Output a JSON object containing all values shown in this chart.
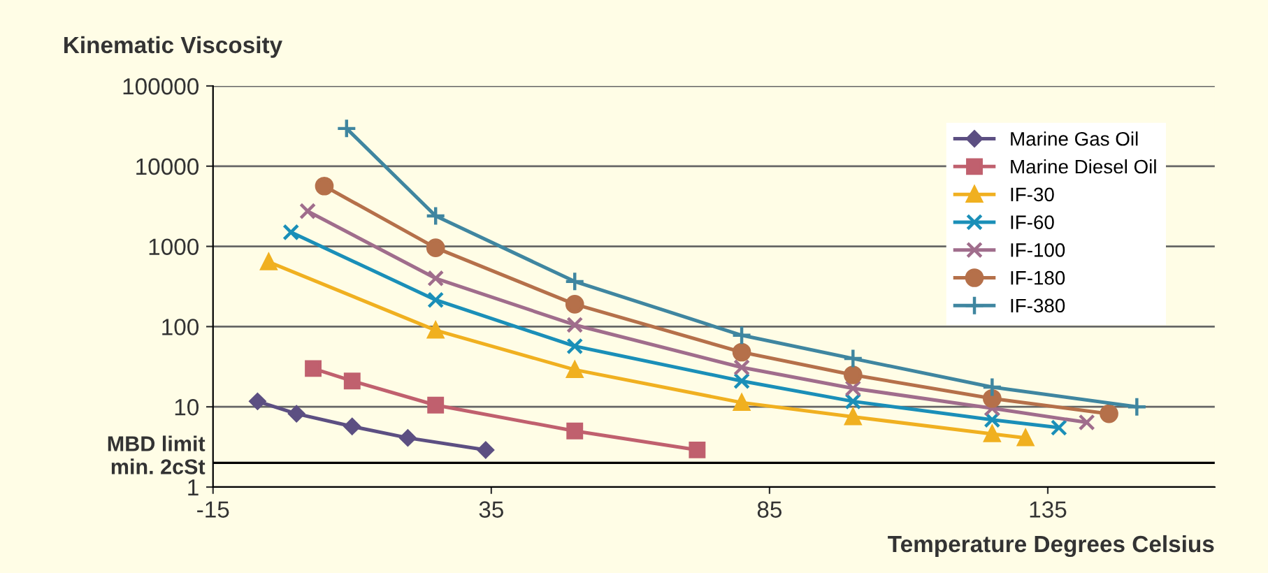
{
  "chart_data": {
    "type": "line",
    "ylabel": "Kinematic Viscosity",
    "xlabel": "Temperature Degrees Celsius",
    "log": "y",
    "xlim": [
      -15,
      165
    ],
    "xticks": [
      -15,
      35,
      85,
      135
    ],
    "ylim": [
      1,
      100000
    ],
    "yticks": [
      1,
      10,
      100,
      1000,
      10000,
      100000
    ],
    "grid": "y",
    "legend": "top right",
    "line_style": "solid",
    "ref_lines": [
      {
        "axis": "y",
        "value": 2,
        "label": "MBD limit\nmin. 2cSt",
        "color": "#000000"
      }
    ],
    "series": [
      {
        "name": "Marine Gas Oil",
        "color": "#5c4f82",
        "marker": "diamond",
        "x": [
          -7,
          0,
          10,
          20,
          34
        ],
        "values": [
          11.7,
          8.2,
          5.7,
          4.1,
          2.9
        ]
      },
      {
        "name": "Marine Diesel Oil",
        "color": "#c0606e",
        "marker": "square",
        "x": [
          3,
          10,
          25,
          50,
          72
        ],
        "values": [
          30,
          21,
          10.5,
          5,
          2.9
        ]
      },
      {
        "name": "IF-30",
        "color": "#f0b020",
        "marker": "triangle",
        "x": [
          -5,
          25,
          50,
          80,
          100,
          125,
          131
        ],
        "values": [
          640,
          90,
          29,
          11.3,
          7.5,
          4.6,
          4.1
        ]
      },
      {
        "name": "IF-60",
        "color": "#1a8fb8",
        "marker": "cross",
        "x": [
          -1,
          25,
          50,
          80,
          100,
          125,
          137
        ],
        "values": [
          1500,
          215,
          57,
          21,
          11.7,
          6.9,
          5.5
        ]
      },
      {
        "name": "IF-100",
        "color": "#a06d8c",
        "marker": "cross",
        "x": [
          2,
          25,
          50,
          80,
          100,
          125,
          142
        ],
        "values": [
          2750,
          400,
          105,
          31,
          17,
          9.6,
          6.4
        ]
      },
      {
        "name": "IF-180",
        "color": "#b5704a",
        "marker": "circle",
        "x": [
          5,
          25,
          50,
          80,
          100,
          125,
          146
        ],
        "values": [
          5650,
          960,
          190,
          48,
          25,
          12.7,
          8.2
        ]
      },
      {
        "name": "IF-380",
        "color": "#3f86a0",
        "marker": "plus",
        "x": [
          9,
          25,
          50,
          80,
          100,
          125,
          151
        ],
        "values": [
          29500,
          2400,
          365,
          78,
          40,
          17.6,
          10
        ]
      }
    ]
  }
}
